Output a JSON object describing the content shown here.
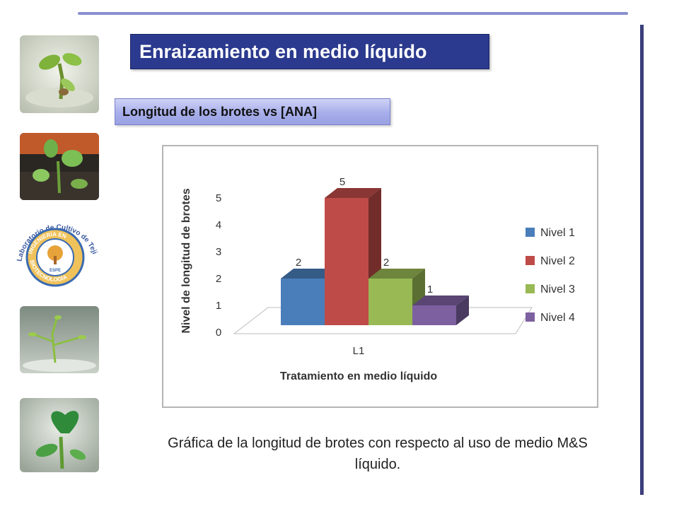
{
  "slide": {
    "title": "Enraizamiento en medio líquido",
    "subtitle": "Longitud de los brotes vs [ANA]",
    "caption": "Gráfica de la longitud de brotes con respecto al uso de medio M&S líquido.",
    "accent_color": "#2b3a8e",
    "rule_color": "#8a8fd0"
  },
  "logo": {
    "arc_text": "Laboratorio de Cultivo de Tejidos",
    "ring_text_top": "INGENIERÍA EN",
    "ring_text_bottom": "BIOTECNOLOGÍA",
    "center_text": "ESPE"
  },
  "photos": [
    {
      "name": "plantlet-photo-1"
    },
    {
      "name": "plantlet-photo-2"
    },
    {
      "name": "plantlet-photo-3"
    },
    {
      "name": "plantlet-photo-4"
    }
  ],
  "chart_data": {
    "type": "bar",
    "title": "",
    "xlabel": "Tratamiento en medio líquido",
    "ylabel": "Nivel de longitud de brotes",
    "categories": [
      "L1"
    ],
    "series": [
      {
        "name": "Nivel 1",
        "values": [
          2
        ],
        "color": "#4a7ebb"
      },
      {
        "name": "Nivel 2",
        "values": [
          5
        ],
        "color": "#be4b48"
      },
      {
        "name": "Nivel 3",
        "values": [
          2
        ],
        "color": "#98b954"
      },
      {
        "name": "Nivel 4",
        "values": [
          1
        ],
        "color": "#7d60a0"
      }
    ],
    "ylim": [
      0,
      5
    ],
    "yticks": [
      "0",
      "1",
      "2",
      "3",
      "4",
      "5"
    ],
    "data_labels": [
      "2",
      "5",
      "2",
      "1"
    ],
    "legend_position": "right",
    "style": "3d-column",
    "grid": false
  }
}
